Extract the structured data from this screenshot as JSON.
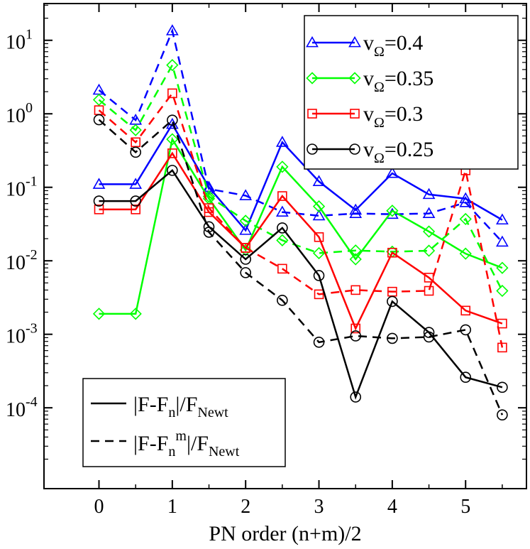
{
  "chart_data": {
    "type": "line",
    "xlabel": "PN order (n+m)/2",
    "ylabel": "",
    "x": [
      0,
      0.5,
      1,
      1.5,
      2,
      2.5,
      3,
      3.5,
      4,
      4.5,
      5,
      5.5
    ],
    "xlim": [
      -0.75,
      5.83
    ],
    "ylim_log10": [
      -5.1,
      1.5
    ],
    "scale_y": "log",
    "x_ticks": [
      {
        "value": 0,
        "label": "0"
      },
      {
        "value": 1,
        "label": "1"
      },
      {
        "value": 2,
        "label": "2"
      },
      {
        "value": 3,
        "label": "3"
      },
      {
        "value": 4,
        "label": "4"
      },
      {
        "value": 5,
        "label": "5"
      }
    ],
    "y_ticks": [
      {
        "exp": 1,
        "base": "10",
        "sup": "1"
      },
      {
        "exp": 0,
        "base": "10",
        "sup": "0"
      },
      {
        "exp": -1,
        "base": "10",
        "sup": "-1"
      },
      {
        "exp": -2,
        "base": "10",
        "sup": "-2"
      },
      {
        "exp": -3,
        "base": "10",
        "sup": "-3"
      },
      {
        "exp": -4,
        "base": "10",
        "sup": "-4"
      }
    ],
    "series": [
      {
        "name": "vΩ=0.4",
        "label_main": "v",
        "label_sub": "Ω",
        "label_rest": "=0.4",
        "color": "#0000ff",
        "marker": "triangle",
        "solid": [
          0.11,
          0.11,
          0.72,
          0.1,
          0.026,
          0.41,
          0.12,
          0.049,
          0.155,
          0.08,
          0.07,
          0.036
        ],
        "dashed": [
          2.1,
          0.82,
          13.5,
          0.095,
          0.077,
          0.046,
          0.041,
          0.044,
          0.043,
          0.044,
          0.062,
          0.018
        ]
      },
      {
        "name": "vΩ=0.35",
        "label_main": "v",
        "label_sub": "Ω",
        "label_rest": "=0.35",
        "color": "#00ff00",
        "marker": "diamond",
        "solid": [
          0.0019,
          0.0019,
          0.45,
          0.07,
          0.014,
          0.19,
          0.055,
          0.0105,
          0.048,
          0.025,
          0.0125,
          0.008
        ],
        "dashed": [
          1.55,
          0.6,
          4.6,
          0.075,
          0.035,
          0.019,
          0.0127,
          0.0138,
          0.0133,
          0.0137,
          0.037,
          0.0039
        ]
      },
      {
        "name": "vΩ=0.3",
        "label_main": "v",
        "label_sub": "Ω",
        "label_rest": "=0.3",
        "color": "#ff0000",
        "marker": "square",
        "solid": [
          0.05,
          0.05,
          0.29,
          0.046,
          0.015,
          0.076,
          0.021,
          0.0012,
          0.0129,
          0.0059,
          0.0021,
          0.0014
        ],
        "dashed": [
          1.12,
          0.41,
          1.9,
          0.052,
          0.015,
          0.0078,
          0.0035,
          0.004,
          0.0038,
          0.0039,
          0.17,
          0.00066
        ]
      },
      {
        "name": "vΩ=0.25",
        "label_main": "v",
        "label_sub": "Ω",
        "label_rest": "=0.25",
        "color": "#000000",
        "marker": "circle",
        "solid": [
          0.065,
          0.065,
          0.17,
          0.029,
          0.0105,
          0.028,
          0.0063,
          0.00014,
          0.0028,
          0.00106,
          0.00026,
          0.00019
        ],
        "dashed": [
          0.83,
          0.3,
          0.82,
          0.0245,
          0.0069,
          0.0029,
          0.00078,
          0.00095,
          0.00088,
          0.00092,
          0.00115,
          8e-05
        ]
      }
    ],
    "style_legend": {
      "placement": "bottom-left",
      "entries": [
        {
          "style": "solid",
          "pre": "|F-F",
          "sub1": "n",
          "sup1": "",
          "mid": "|/F",
          "sub2": "Newt"
        },
        {
          "style": "dashed",
          "pre": "|F-F",
          "sub1": "n",
          "sup1": "m",
          "mid": "|/F",
          "sub2": "Newt"
        }
      ]
    },
    "series_legend_placement": "top-right"
  }
}
